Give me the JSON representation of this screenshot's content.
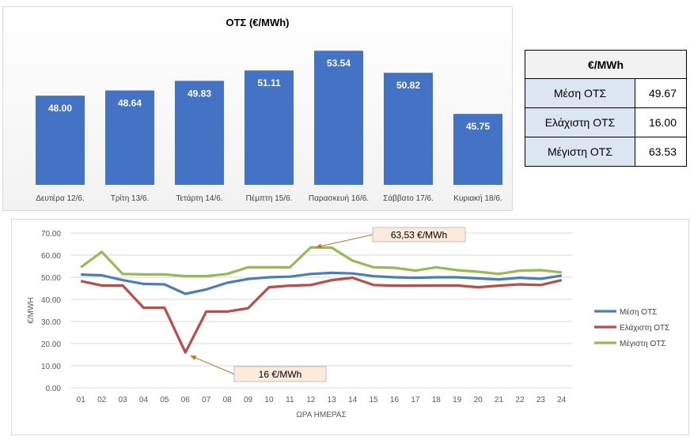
{
  "stats_table": {
    "header": "€/MWh",
    "rows": [
      {
        "label": "Μέση ΟΤΣ",
        "value": "49.67"
      },
      {
        "label": "Ελάχιστη ΟΤΣ",
        "value": "16.00"
      },
      {
        "label": "Μέγιστη ΟΤΣ",
        "value": "63.53"
      }
    ]
  },
  "colors": {
    "bar": "#4472c4",
    "mean": "#4a7ebb",
    "min": "#be4b48",
    "max": "#98b954",
    "callout_fill": "#fdeada",
    "callout_arrow": "#c0742e"
  },
  "chart_data": [
    {
      "type": "bar",
      "title": "ΟΤΣ (€/MWh)",
      "categories": [
        "Δευτέρα 12/6.",
        "Τρίτη 13/6.",
        "Τετάρτη 14/6.",
        "Πέμπτη 15/6.",
        "Παρασκευή 16/6.",
        "Σάββατο 17/6.",
        "Κυριακή 18/6."
      ],
      "values": [
        48.0,
        48.64,
        49.83,
        51.11,
        53.54,
        50.82,
        45.75
      ],
      "value_labels": [
        "48.00",
        "48.64",
        "49.83",
        "51.11",
        "53.54",
        "50.82",
        "45.75"
      ],
      "ylim": [
        37,
        56
      ],
      "grid": false
    },
    {
      "type": "line",
      "xlabel": "ΩΡΑ ΗΜΕΡΑΣ",
      "ylabel": "€/MWH",
      "x": [
        "01",
        "02",
        "03",
        "04",
        "05",
        "06",
        "07",
        "08",
        "09",
        "10",
        "11",
        "12",
        "13",
        "14",
        "15",
        "16",
        "17",
        "18",
        "19",
        "20",
        "21",
        "22",
        "23",
        "24"
      ],
      "yticks": [
        "0.00",
        "10.00",
        "20.00",
        "30.00",
        "40.00",
        "50.00",
        "60.00",
        "70.00"
      ],
      "ylim": [
        0,
        70
      ],
      "grid": true,
      "legend": "right",
      "series": [
        {
          "name": "Μέση ΟΤΣ",
          "values": [
            51.2,
            50.9,
            48.7,
            47.0,
            46.8,
            42.5,
            44.5,
            47.5,
            49.2,
            50.0,
            50.3,
            51.5,
            52.0,
            51.7,
            50.5,
            50.0,
            49.8,
            50.0,
            50.0,
            49.5,
            49.0,
            49.8,
            49.3,
            50.8
          ]
        },
        {
          "name": "Ελάχιστη ΟΤΣ",
          "values": [
            48.3,
            46.3,
            46.3,
            36.2,
            36.2,
            16.0,
            34.5,
            34.5,
            36.0,
            45.5,
            46.2,
            46.5,
            48.7,
            49.8,
            46.5,
            46.2,
            46.2,
            46.3,
            46.3,
            45.5,
            46.2,
            46.8,
            46.5,
            48.7
          ]
        },
        {
          "name": "Μέγιστη ΟΤΣ",
          "values": [
            54.5,
            61.5,
            51.5,
            51.3,
            51.3,
            50.5,
            50.5,
            51.5,
            54.5,
            54.5,
            54.5,
            63.53,
            63.4,
            57.5,
            54.5,
            54.3,
            53.0,
            54.5,
            53.2,
            52.5,
            51.5,
            53.0,
            53.2,
            52.2
          ]
        }
      ],
      "annotations": [
        {
          "text": "63,53 €/MWh",
          "x": "12",
          "y": 63.53
        },
        {
          "text": "16 €/MWh",
          "x": "06",
          "y": 16.0
        }
      ]
    }
  ]
}
